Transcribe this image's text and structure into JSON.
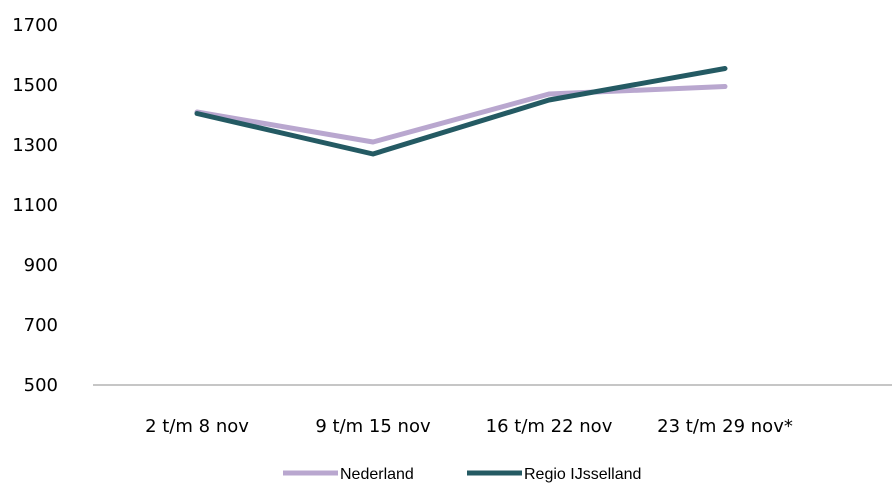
{
  "chart_data": {
    "type": "line",
    "categories": [
      "2 t/m 8 nov",
      "9 t/m 15 nov",
      "16 t/m 22 nov",
      "23 t/m 29 nov*"
    ],
    "yticks": [
      "500",
      "700",
      "900",
      "1100",
      "1300",
      "1500",
      "1700"
    ],
    "ylim": [
      500,
      1700
    ],
    "grid": false,
    "legend_position": "bottom",
    "series": [
      {
        "name": "Nederland",
        "color": "#b9a7cf",
        "values": [
          1410,
          1310,
          1470,
          1495
        ]
      },
      {
        "name": "Regio IJsselland",
        "color": "#245a63",
        "values": [
          1405,
          1270,
          1450,
          1555
        ]
      }
    ]
  }
}
